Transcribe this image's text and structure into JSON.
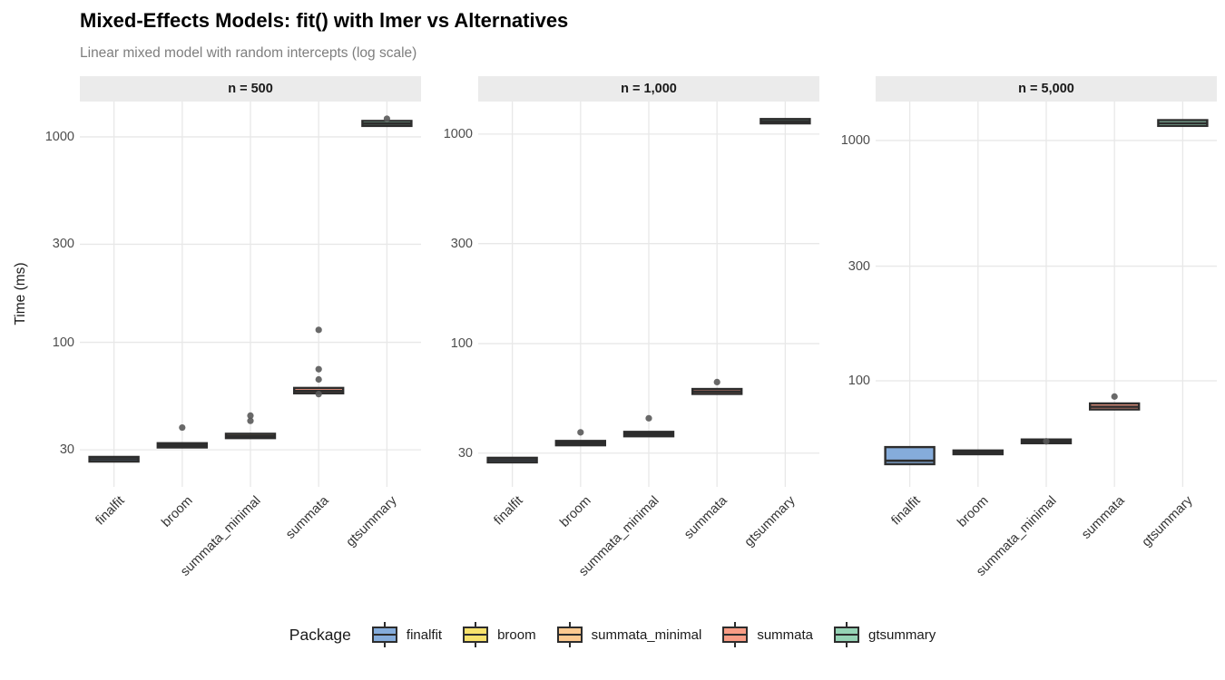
{
  "chart_data": {
    "type": "boxplot",
    "title": "Mixed-Effects Models: fit() with lmer vs Alternatives",
    "subtitle": "Linear mixed model with random intercepts (log scale)",
    "ylabel": "Time (ms)",
    "scale": "log10",
    "grid": "major-only",
    "categories": [
      "finalfit",
      "broom",
      "summata_minimal",
      "summata",
      "gtsummary"
    ],
    "palette": {
      "finalfit": "#85ACDB",
      "broom": "#F7E16C",
      "summata_minimal": "#FBC990",
      "summata": "#F89C85",
      "gtsummary": "#95D3B5"
    },
    "style": {
      "box_stroke": "#2d2d2d",
      "outlier_fill": "#595959",
      "gridline": "#e8e8e8",
      "strip_bg": "#ebebeb",
      "strip_text": "#1a1a1a",
      "tick_text": "#4d4d4d",
      "subtitle_text": "#7e7e7e"
    },
    "legend": {
      "title": "Package",
      "entries": [
        "finalfit",
        "broom",
        "summata_minimal",
        "summata",
        "gtsummary"
      ]
    },
    "facets": [
      {
        "label": "n = 500",
        "ylim": [
          19.8,
          1485
        ],
        "y_ticks": [
          1000,
          300,
          100,
          30
        ],
        "boxes": [
          {
            "category": "finalfit",
            "q1": 26.3,
            "median": 27,
            "q3": 27.7,
            "outliers": []
          },
          {
            "category": "broom",
            "q1": 30.8,
            "median": 31.5,
            "q3": 32.3,
            "outliers": [
              38.5
            ]
          },
          {
            "category": "summata_minimal",
            "q1": 34.2,
            "median": 35,
            "q3": 35.9,
            "outliers": [
              41.5,
              44
            ]
          },
          {
            "category": "summata",
            "q1": 56.5,
            "median": 58,
            "q3": 60,
            "outliers": [
              115,
              74,
              66,
              56
            ]
          },
          {
            "category": "gtsummary",
            "q1": 1130,
            "median": 1160,
            "q3": 1195,
            "outliers": [
              1225
            ]
          }
        ]
      },
      {
        "label": "n = 1,000",
        "ylim": [
          20.7,
          1430
        ],
        "y_ticks": [
          1000,
          300,
          100,
          30
        ],
        "boxes": [
          {
            "category": "finalfit",
            "q1": 27.1,
            "median": 27.8,
            "q3": 28.5,
            "outliers": []
          },
          {
            "category": "broom",
            "q1": 32.7,
            "median": 33.5,
            "q3": 34.3,
            "outliers": [
              37.7
            ]
          },
          {
            "category": "summata_minimal",
            "q1": 36.1,
            "median": 37,
            "q3": 37.9,
            "outliers": [
              44
            ]
          },
          {
            "category": "summata",
            "q1": 57.5,
            "median": 59,
            "q3": 60.7,
            "outliers": [
              65.5
            ]
          },
          {
            "category": "gtsummary",
            "q1": 1125,
            "median": 1150,
            "q3": 1180,
            "outliers": []
          }
        ]
      },
      {
        "label": "n = 5,000",
        "ylim": [
          36.2,
          1452
        ],
        "y_ticks": [
          1000,
          300,
          100
        ],
        "boxes": [
          {
            "category": "finalfit",
            "q1": 45,
            "median": 46.5,
            "q3": 53,
            "outliers": []
          },
          {
            "category": "broom",
            "q1": 49.5,
            "median": 50.4,
            "q3": 51.3,
            "outliers": []
          },
          {
            "category": "summata_minimal",
            "q1": 55,
            "median": 56,
            "q3": 57,
            "outliers": [
              56
            ]
          },
          {
            "category": "summata",
            "q1": 76,
            "median": 78,
            "q3": 80.5,
            "outliers": [
              86
            ]
          },
          {
            "category": "gtsummary",
            "q1": 1150,
            "median": 1180,
            "q3": 1215,
            "outliers": []
          }
        ]
      }
    ]
  }
}
